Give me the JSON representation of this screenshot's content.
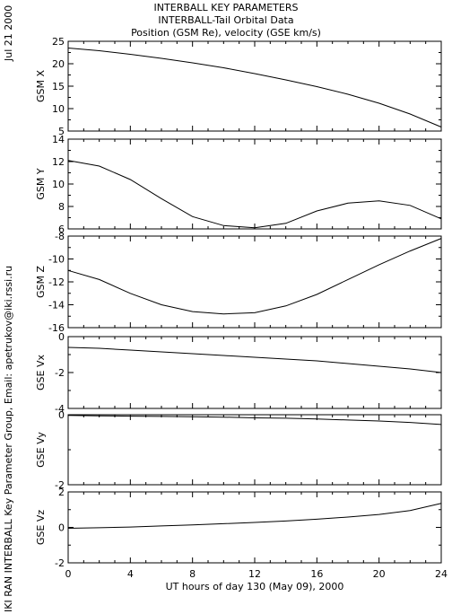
{
  "header": {
    "line1": "INTERBALL KEY PARAMETERS",
    "line2": "INTERBALL-Tail Orbital Data",
    "line3": "Position (GSM Re), velocity (GSE km/s)"
  },
  "side": {
    "date": "Jul 21 2000",
    "credit": "IKI RAN INTERBALL Key Parameter Group, Email: apetrukov@iki.rssi.ru"
  },
  "chart_data": {
    "type": "line",
    "xlabel": "UT hours of day 130 (May 09), 2000",
    "xlim": [
      0,
      24
    ],
    "xticks": [
      0,
      4,
      8,
      12,
      16,
      20,
      24
    ],
    "panels": [
      {
        "ylabel": "GSM X",
        "ylim": [
          5,
          25
        ],
        "yticks": [
          5,
          10,
          15,
          20,
          25
        ],
        "x": [
          0,
          2,
          4,
          6,
          8,
          10,
          12,
          14,
          16,
          18,
          20,
          22,
          24
        ],
        "y": [
          23.5,
          22.9,
          22.1,
          21.2,
          20.2,
          19.1,
          17.8,
          16.4,
          14.9,
          13.2,
          11.2,
          8.8,
          5.9
        ]
      },
      {
        "ylabel": "GSM Y",
        "ylim": [
          6,
          14
        ],
        "yticks": [
          6,
          8,
          10,
          12,
          14
        ],
        "x": [
          0,
          2,
          4,
          6,
          8,
          10,
          12,
          14,
          16,
          18,
          20,
          22,
          24
        ],
        "y": [
          12.1,
          11.6,
          10.4,
          8.7,
          7.1,
          6.3,
          6.1,
          6.5,
          7.6,
          8.3,
          8.5,
          8.1,
          6.9
        ]
      },
      {
        "ylabel": "GSM Z",
        "ylim": [
          -16,
          -8
        ],
        "yticks": [
          -16,
          -14,
          -12,
          -10,
          -8
        ],
        "x": [
          0,
          2,
          4,
          6,
          8,
          10,
          12,
          14,
          16,
          18,
          20,
          22,
          24
        ],
        "y": [
          -11.0,
          -11.8,
          -13.0,
          -14.0,
          -14.6,
          -14.8,
          -14.7,
          -14.1,
          -13.1,
          -11.8,
          -10.5,
          -9.3,
          -8.2
        ]
      },
      {
        "ylabel": "GSE Vx",
        "ylim": [
          -4,
          0
        ],
        "yticks": [
          -4,
          -2,
          0
        ],
        "x": [
          0,
          2,
          4,
          6,
          8,
          10,
          12,
          14,
          16,
          18,
          20,
          22,
          24
        ],
        "y": [
          -0.6,
          -0.65,
          -0.75,
          -0.85,
          -0.95,
          -1.05,
          -1.15,
          -1.25,
          -1.35,
          -1.5,
          -1.65,
          -1.8,
          -2.0
        ]
      },
      {
        "ylabel": "GSE Vy",
        "ylim": [
          -2,
          0
        ],
        "yticks": [
          -2,
          0
        ],
        "x": [
          0,
          2,
          4,
          6,
          8,
          10,
          12,
          14,
          16,
          18,
          20,
          22,
          24
        ],
        "y": [
          -0.02,
          -0.03,
          -0.04,
          -0.05,
          -0.06,
          -0.07,
          -0.09,
          -0.1,
          -0.12,
          -0.15,
          -0.18,
          -0.22,
          -0.28
        ]
      },
      {
        "ylabel": "GSE Vz",
        "ylim": [
          -2,
          2
        ],
        "yticks": [
          -2,
          0,
          2
        ],
        "x": [
          0,
          2,
          4,
          6,
          8,
          10,
          12,
          14,
          16,
          18,
          20,
          22,
          24
        ],
        "y": [
          -0.05,
          -0.02,
          0.02,
          0.08,
          0.14,
          0.21,
          0.28,
          0.36,
          0.46,
          0.58,
          0.73,
          0.95,
          1.35
        ]
      }
    ]
  }
}
